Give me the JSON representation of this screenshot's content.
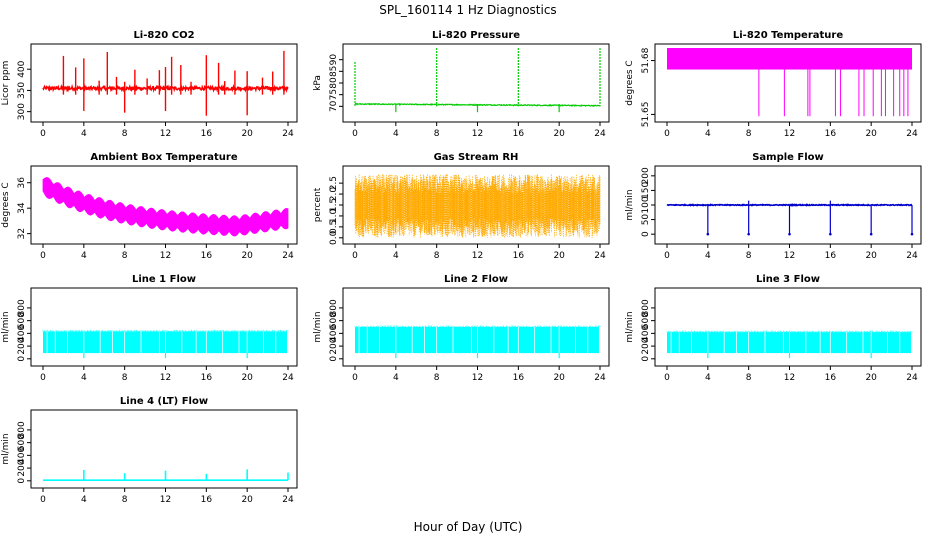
{
  "title": "SPL_160114  1 Hz Diagnostics",
  "xlabel": "Hour of Day (UTC)",
  "chart_data": [
    {
      "type": "line",
      "title": "Li-820 CO2",
      "ylabel": "Licor ppm",
      "color": "#ff0000",
      "xlim": [
        0,
        24
      ],
      "ylim": [
        285,
        450
      ],
      "yticks": [
        300,
        350,
        400
      ],
      "xticks": [
        0,
        4,
        8,
        12,
        16,
        20,
        24
      ],
      "style": "co2",
      "base": 355
    },
    {
      "type": "line",
      "title": "Li-820 Pressure",
      "ylabel": "kPa",
      "color": "#00cc00",
      "xlim": [
        0,
        24
      ],
      "ylim": [
        65,
        95
      ],
      "yticks": [
        70,
        75,
        80,
        85,
        90
      ],
      "xticks": [
        0,
        4,
        8,
        12,
        16,
        20,
        24
      ],
      "style": "pressure",
      "base": 71
    },
    {
      "type": "line",
      "title": "Li-820 Temperature",
      "ylabel": "degrees C",
      "color": "#ff00ff",
      "xlim": [
        0,
        24
      ],
      "ylim": [
        51.648,
        51.687
      ],
      "yticks": [
        "51.65",
        "51.68"
      ],
      "xticks": [
        0,
        4,
        8,
        12,
        16,
        20,
        24
      ],
      "style": "licortemp",
      "band": [
        51.675,
        51.687
      ]
    },
    {
      "type": "line",
      "title": "Ambient Box Temperature",
      "ylabel": "degrees C",
      "color": "#ff00ff",
      "xlim": [
        0,
        24
      ],
      "ylim": [
        31.5,
        37
      ],
      "yticks": [
        32,
        34,
        36
      ],
      "xticks": [
        0,
        4,
        8,
        12,
        16,
        20,
        24
      ],
      "style": "boxtemp",
      "start": 35.8,
      "min": 32.6,
      "end": 33.2
    },
    {
      "type": "line",
      "title": "Gas Stream RH",
      "ylabel": "percent",
      "color": "#ffaa00",
      "xlim": [
        0,
        24
      ],
      "ylim": [
        -0.1,
        3.1
      ],
      "yticks": [
        "0.0",
        "0.5",
        "1.0",
        "1.5",
        "2.0",
        "2.5"
      ],
      "xticks": [
        0,
        4,
        8,
        12,
        16,
        20,
        24
      ],
      "style": "rh",
      "band": [
        0,
        2.9
      ],
      "mean": 1.4
    },
    {
      "type": "line",
      "title": "Sample Flow",
      "ylabel": "ml/min",
      "color": "#0000cc",
      "xlim": [
        0,
        24
      ],
      "ylim": [
        -20,
        220
      ],
      "yticks": [
        0,
        50,
        100,
        150,
        200
      ],
      "xticks": [
        0,
        4,
        8,
        12,
        16,
        20,
        24
      ],
      "style": "sampleflow",
      "base": 100
    },
    {
      "type": "area",
      "title": "Line 1 Flow",
      "ylabel": "ml/min",
      "color": "#00ffff",
      "xlim": [
        0,
        24
      ],
      "ylim": [
        -50,
        1050
      ],
      "yticks": [
        0,
        200,
        400,
        600,
        800
      ],
      "xticks": [
        0,
        4,
        8,
        12,
        16,
        20,
        24
      ],
      "style": "lineflow",
      "band": [
        90,
        430
      ]
    },
    {
      "type": "area",
      "title": "Line 2 Flow",
      "ylabel": "ml/min",
      "color": "#00ffff",
      "xlim": [
        0,
        24
      ],
      "ylim": [
        -50,
        1050
      ],
      "yticks": [
        0,
        200,
        400,
        600,
        800
      ],
      "xticks": [
        0,
        4,
        8,
        12,
        16,
        20,
        24
      ],
      "style": "lineflow",
      "band": [
        90,
        500
      ]
    },
    {
      "type": "area",
      "title": "Line 3 Flow",
      "ylabel": "ml/min",
      "color": "#00ffff",
      "xlim": [
        0,
        24
      ],
      "ylim": [
        -50,
        1050
      ],
      "yticks": [
        0,
        200,
        400,
        600,
        800
      ],
      "xticks": [
        0,
        4,
        8,
        12,
        16,
        20,
        24
      ],
      "style": "lineflow",
      "band": [
        90,
        420
      ]
    },
    {
      "type": "line",
      "title": "Line 4 (LT) Flow",
      "ylabel": "ml/min",
      "color": "#00ffff",
      "xlim": [
        0,
        24
      ],
      "ylim": [
        -50,
        1050
      ],
      "yticks": [
        0,
        200,
        400,
        600,
        800
      ],
      "xticks": [
        0,
        4,
        8,
        12,
        16,
        20,
        24
      ],
      "style": "line4",
      "base": 10,
      "spikes": [
        4,
        8,
        12,
        16,
        20,
        24
      ],
      "spike_values": [
        170,
        120,
        160,
        110,
        180,
        130
      ]
    }
  ]
}
